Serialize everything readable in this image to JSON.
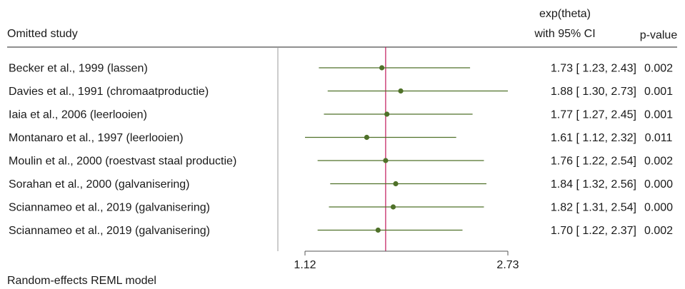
{
  "chart_data": {
    "type": "forest",
    "header": {
      "study_col": "Omitted study",
      "effect_col_line1": "exp(theta)",
      "effect_col_line2": "with 95% CI",
      "p_col": "p-value"
    },
    "x_ticks": [
      "1.12",
      "2.73"
    ],
    "x_tick_values": [
      1.12,
      2.73
    ],
    "x_range": [
      1.0,
      2.8
    ],
    "overall_line": 1.76,
    "footnote": "Random-effects REML model",
    "studies": [
      {
        "label": "Becker et al., 1999 (lassen)",
        "estimate": 1.73,
        "lo": 1.23,
        "hi": 2.43,
        "ci_text": "1.73 [ 1.23,  2.43]",
        "p": "0.002"
      },
      {
        "label": "Davies et al., 1991 (chromaatproductie)",
        "estimate": 1.88,
        "lo": 1.3,
        "hi": 2.73,
        "ci_text": "1.88 [ 1.30,  2.73]",
        "p": "0.001"
      },
      {
        "label": "Iaia et al., 2006 (leerlooien)",
        "estimate": 1.77,
        "lo": 1.27,
        "hi": 2.45,
        "ci_text": "1.77 [ 1.27,  2.45]",
        "p": "0.001"
      },
      {
        "label": "Montanaro et al., 1997 (leerlooien)",
        "estimate": 1.61,
        "lo": 1.12,
        "hi": 2.32,
        "ci_text": "1.61 [ 1.12,  2.32]",
        "p": "0.011"
      },
      {
        "label": "Moulin et al., 2000 (roestvast staal productie)",
        "estimate": 1.76,
        "lo": 1.22,
        "hi": 2.54,
        "ci_text": "1.76 [ 1.22,  2.54]",
        "p": "0.002"
      },
      {
        "label": "Sorahan et al., 2000 (galvanisering)",
        "estimate": 1.84,
        "lo": 1.32,
        "hi": 2.56,
        "ci_text": "1.84 [ 1.32,  2.56]",
        "p": "0.000"
      },
      {
        "label": "Sciannameo et al., 2019 (galvanisering)",
        "estimate": 1.82,
        "lo": 1.31,
        "hi": 2.54,
        "ci_text": "1.82 [ 1.31,  2.54]",
        "p": "0.000"
      },
      {
        "label": "Sciannameo et al., 2019 (galvanisering)",
        "estimate": 1.7,
        "lo": 1.22,
        "hi": 2.37,
        "ci_text": "1.70 [ 1.22,  2.37]",
        "p": "0.002"
      }
    ],
    "colors": {
      "ci": "#4f7129",
      "point": "#4f7129",
      "overall_line": "#c2185b",
      "axis": "#555555",
      "rule": "#222222"
    }
  }
}
